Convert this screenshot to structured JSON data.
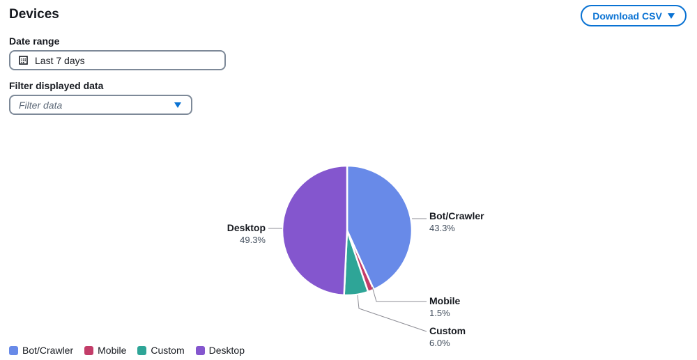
{
  "header": {
    "title": "Devices",
    "download_label": "Download CSV"
  },
  "date_range": {
    "label": "Date range",
    "value": "Last 7 days"
  },
  "filter": {
    "label": "Filter displayed data",
    "placeholder": "Filter data"
  },
  "chart_data": {
    "type": "pie",
    "categories": [
      "Bot/Crawler",
      "Mobile",
      "Custom",
      "Desktop"
    ],
    "values": [
      43.3,
      1.5,
      6.0,
      49.3
    ],
    "labels": [
      "43.3%",
      "1.5%",
      "6.0%",
      "49.3%"
    ],
    "colors": [
      "#688ae8",
      "#c33d69",
      "#2ea597",
      "#8456ce"
    ],
    "legend": "bottom-left"
  }
}
